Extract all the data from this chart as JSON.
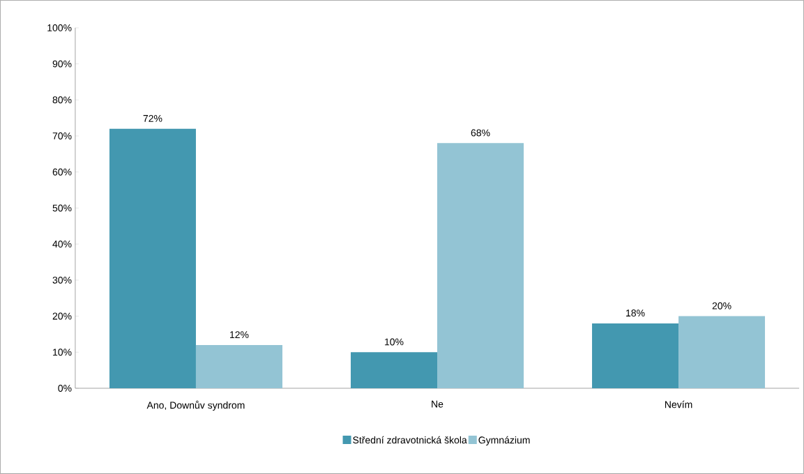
{
  "chart_data": {
    "type": "bar",
    "categories": [
      "Ano, Downův syndrom",
      "Ne",
      "Nevím"
    ],
    "series": [
      {
        "name": "Střední zdravotnická škola",
        "color": "#4398b0",
        "values": [
          72,
          10,
          18
        ],
        "value_labels": [
          "72%",
          "10%",
          "18%"
        ]
      },
      {
        "name": "Gymnázium",
        "color": "#93c4d4",
        "values": [
          12,
          68,
          20
        ],
        "value_labels": [
          "12%",
          "68%",
          "20%"
        ]
      }
    ],
    "ylim": [
      0,
      100
    ],
    "yticks": [
      {
        "value": 0,
        "label": "0%"
      },
      {
        "value": 10,
        "label": "10%"
      },
      {
        "value": 20,
        "label": "20%"
      },
      {
        "value": 30,
        "label": "30%"
      },
      {
        "value": 40,
        "label": "40%"
      },
      {
        "value": 50,
        "label": "50%"
      },
      {
        "value": 60,
        "label": "60%"
      },
      {
        "value": 70,
        "label": "70%"
      },
      {
        "value": 80,
        "label": "80%"
      },
      {
        "value": 90,
        "label": "90%"
      },
      {
        "value": 100,
        "label": "100%"
      }
    ],
    "legend": "bottom"
  }
}
